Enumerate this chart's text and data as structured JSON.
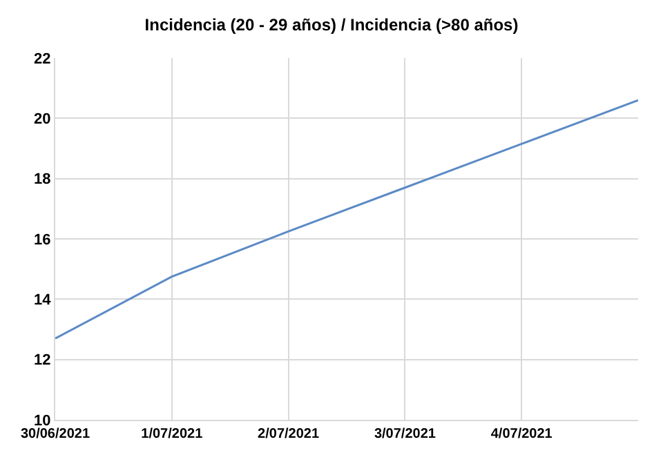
{
  "chart_data": {
    "type": "line",
    "title": "Incidencia (20 - 29 años) / Incidencia (>80 años)",
    "categories": [
      "30/06/2021",
      "1/07/2021",
      "2/07/2021",
      "3/07/2021",
      "4/07/2021",
      null
    ],
    "series": [
      {
        "color": "#5b8ac6",
        "values": [
          12.7,
          14.75,
          16.25,
          17.7,
          19.15,
          20.6
        ]
      }
    ],
    "ylim": [
      10,
      22
    ],
    "yticks": [
      10,
      12,
      14,
      16,
      18,
      20,
      22
    ],
    "grid": true
  }
}
